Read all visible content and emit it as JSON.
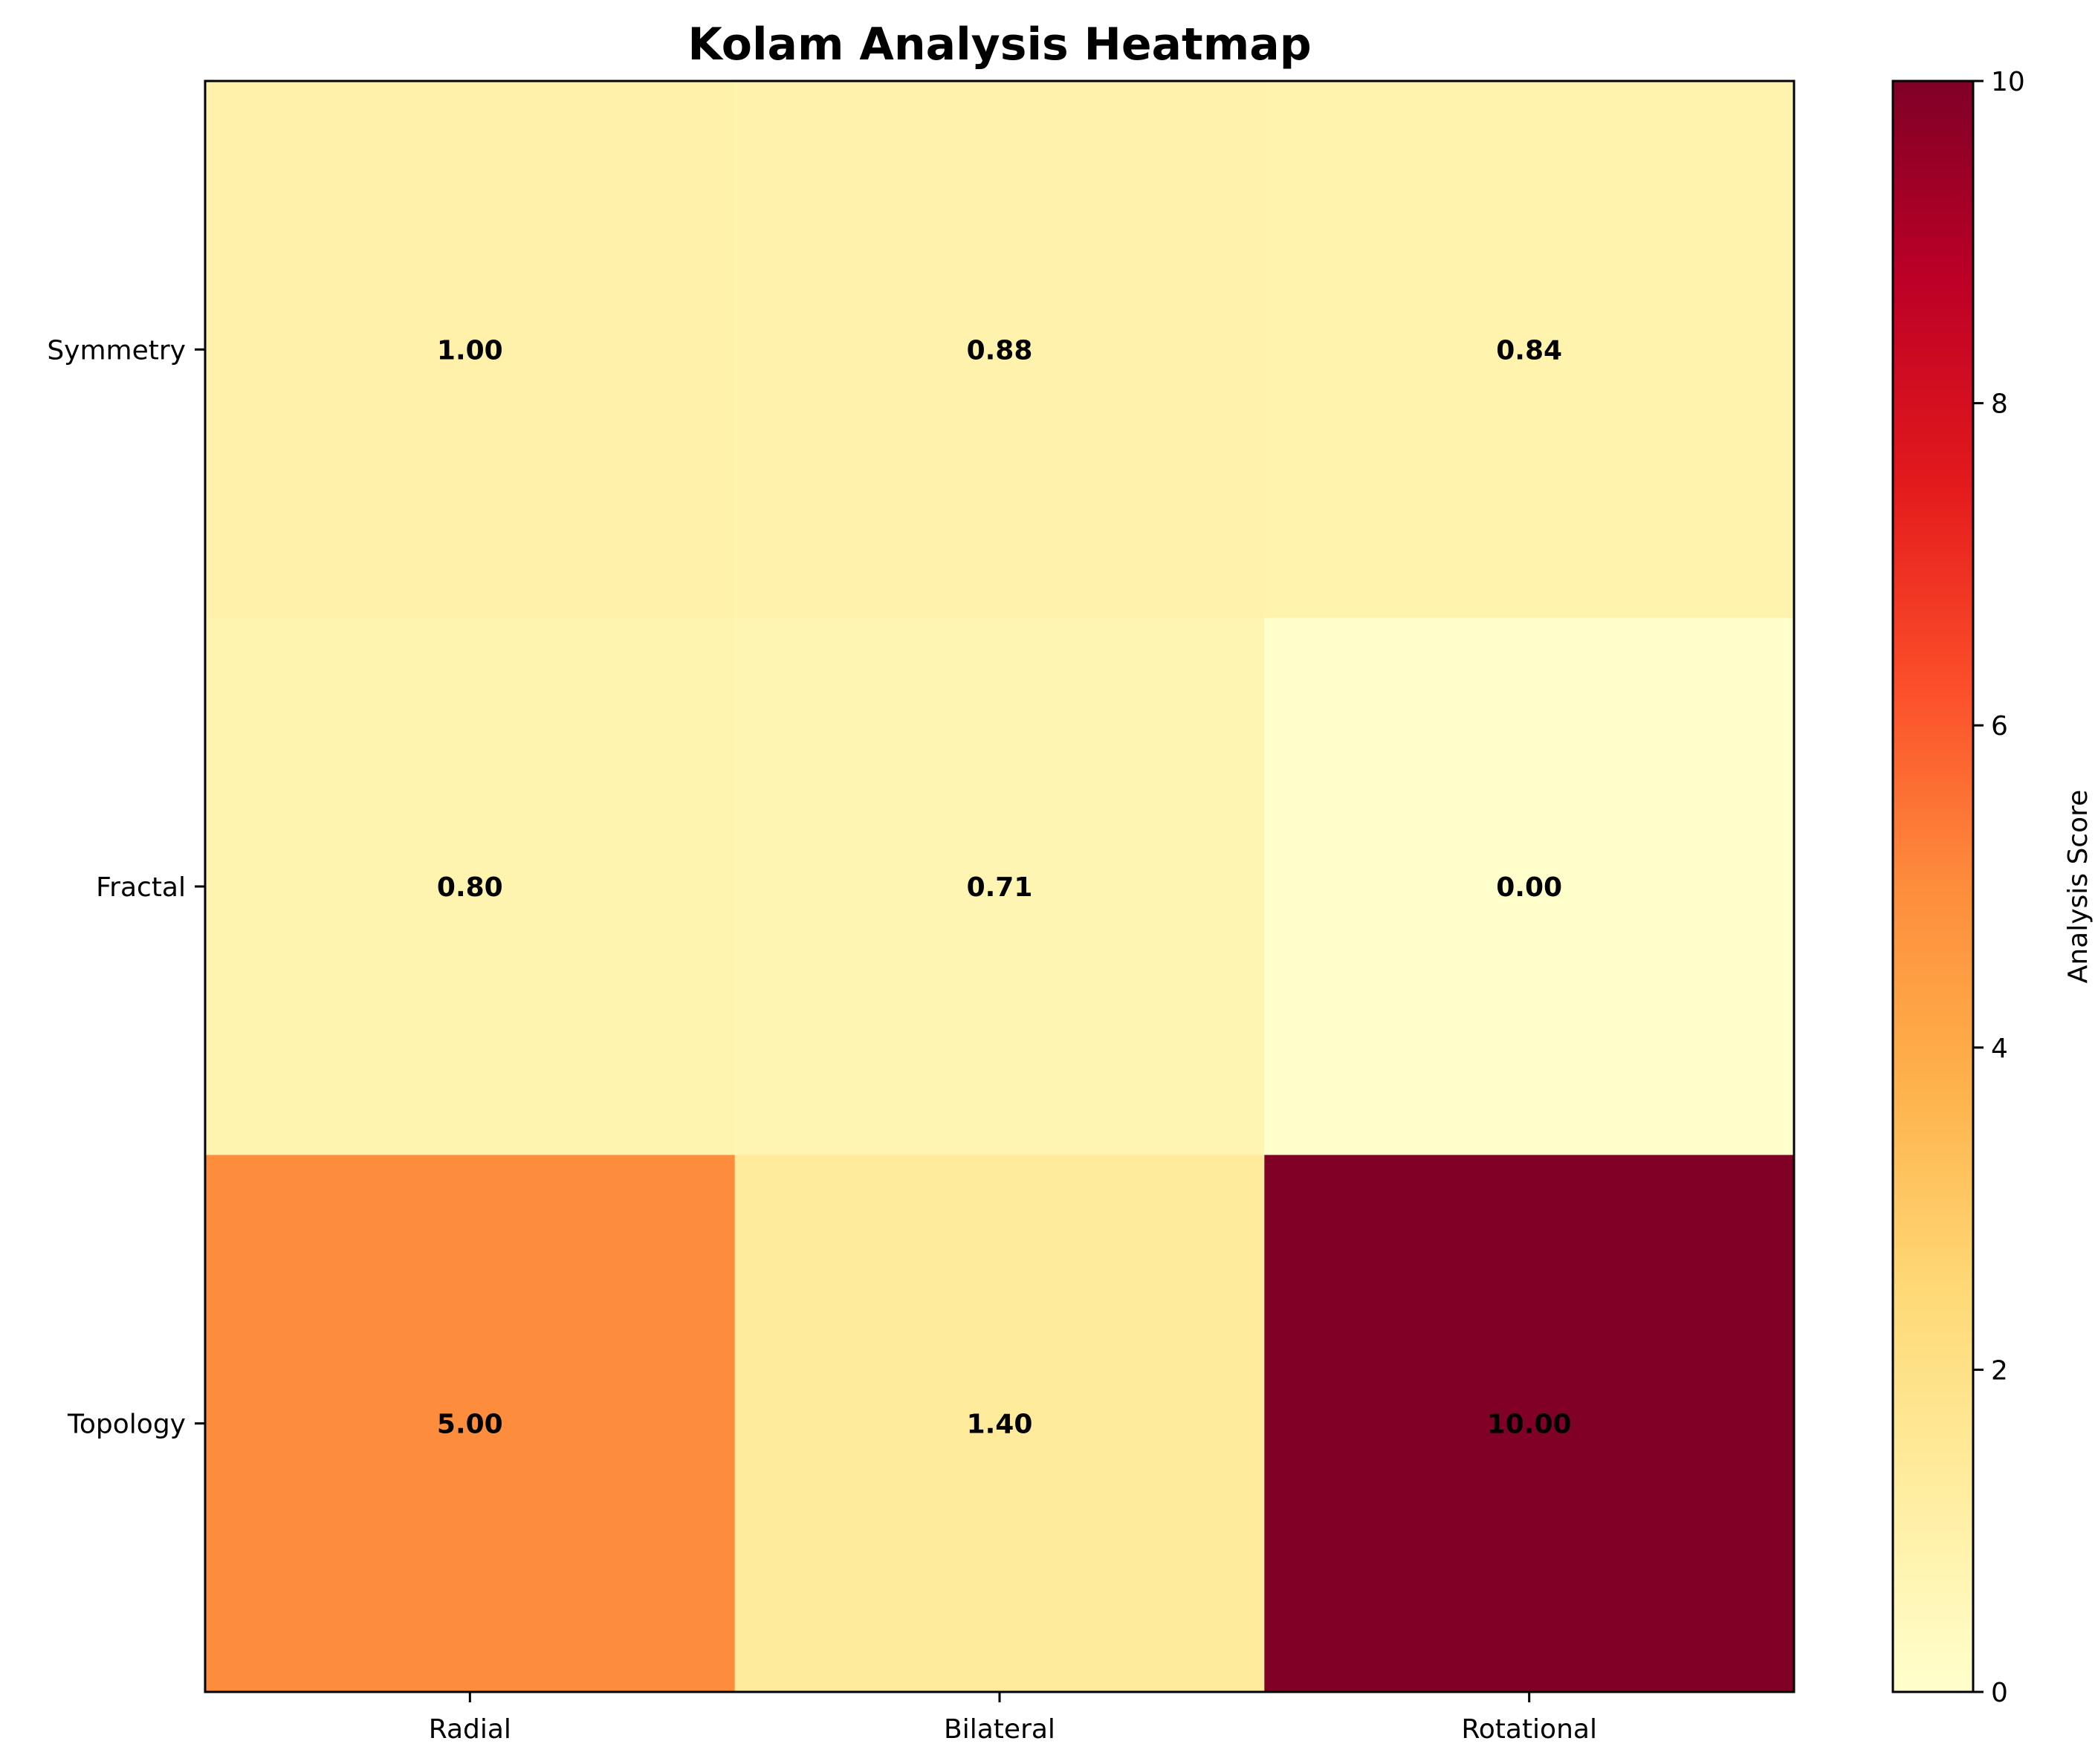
{
  "chart_data": {
    "type": "heatmap",
    "title": "Kolam Analysis Heatmap",
    "x_categories": [
      "Radial",
      "Bilateral",
      "Rotational"
    ],
    "y_categories": [
      "Symmetry",
      "Fractal",
      "Topology"
    ],
    "values": [
      [
        1.0,
        0.88,
        0.84
      ],
      [
        0.8,
        0.71,
        0.0
      ],
      [
        5.0,
        1.4,
        10.0
      ]
    ],
    "value_labels": [
      [
        "1.00",
        "0.88",
        "0.84"
      ],
      [
        "0.80",
        "0.71",
        "0.00"
      ],
      [
        "5.00",
        "1.40",
        "10.00"
      ]
    ],
    "colormap": "YlOrRd",
    "vmin": 0,
    "vmax": 10,
    "colorbar": {
      "label": "Analysis Score",
      "ticks": [
        0,
        2,
        4,
        6,
        8,
        10
      ],
      "tick_labels": [
        "0",
        "2",
        "4",
        "6",
        "8",
        "10"
      ]
    }
  }
}
